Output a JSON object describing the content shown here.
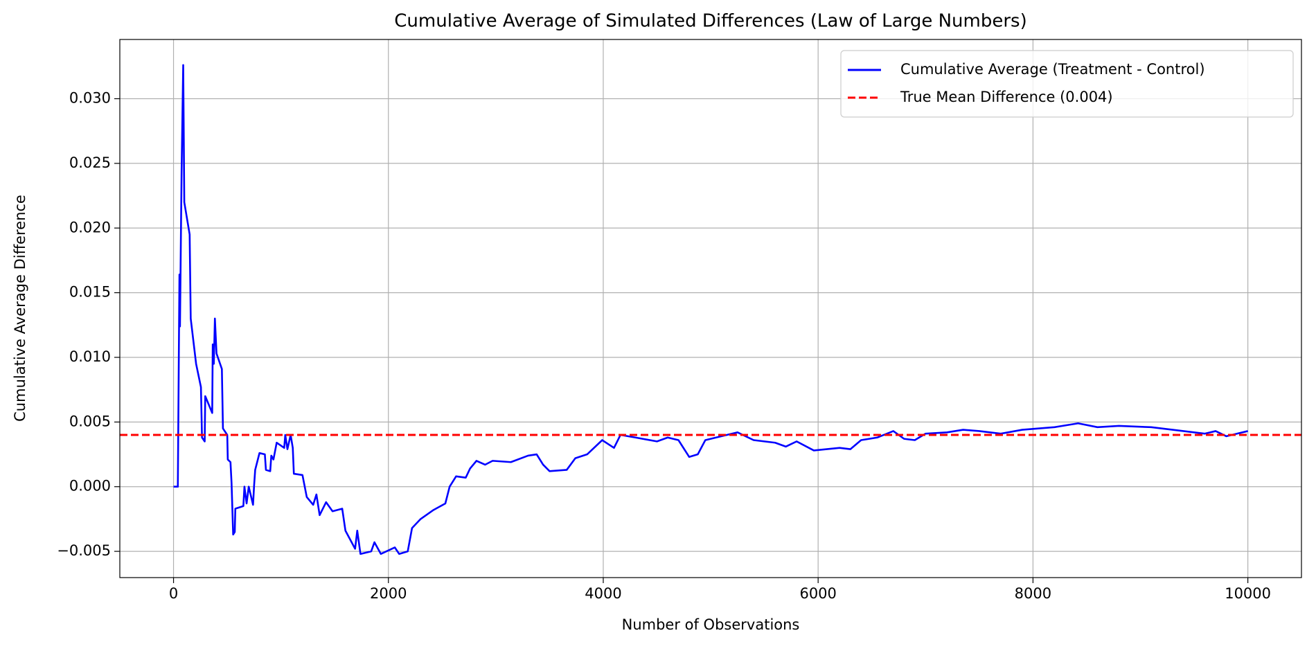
{
  "chart_data": {
    "type": "line",
    "title": "Cumulative Average of Simulated Differences (Law of Large Numbers)",
    "x_label": "Number of Observations",
    "y_label": "Cumulative Average Difference",
    "x": [
      0,
      40,
      55,
      60,
      75,
      90,
      100,
      150,
      160,
      210,
      255,
      265,
      290,
      295,
      360,
      365,
      375,
      385,
      400,
      450,
      460,
      500,
      505,
      530,
      540,
      555,
      570,
      575,
      650,
      660,
      680,
      700,
      740,
      750,
      760,
      800,
      850,
      860,
      900,
      910,
      930,
      960,
      1030,
      1040,
      1060,
      1090,
      1110,
      1120,
      1200,
      1240,
      1300,
      1330,
      1360,
      1420,
      1480,
      1570,
      1600,
      1690,
      1710,
      1740,
      1840,
      1870,
      1930,
      2060,
      2100,
      2180,
      2220,
      2300,
      2420,
      2530,
      2570,
      2630,
      2720,
      2760,
      2820,
      2900,
      2970,
      3140,
      3300,
      3380,
      3440,
      3500,
      3660,
      3740,
      3850,
      3990,
      4100,
      4160,
      4300,
      4500,
      4600,
      4700,
      4800,
      4880,
      4950,
      5100,
      5250,
      5400,
      5600,
      5700,
      5800,
      5960,
      6200,
      6300,
      6400,
      6550,
      6700,
      6800,
      6900,
      7000,
      7200,
      7350,
      7500,
      7700,
      7900,
      8200,
      8420,
      8600,
      8800,
      9100,
      9400,
      9600,
      9700,
      9800,
      9900,
      10000
    ],
    "series": [
      {
        "name": "Cumulative Average (Treatment - Control)",
        "color": "#0000ff",
        "values": [
          0,
          0,
          0.0164,
          0.0124,
          0.0244,
          0.0326,
          0.022,
          0.0195,
          0.013,
          0.0095,
          0.0077,
          0.0038,
          0.0035,
          0.007,
          0.0057,
          0.011,
          0.0095,
          0.013,
          0.0103,
          0.0091,
          0.0045,
          0.004,
          0.0021,
          0.0019,
          0.0003,
          -0.0037,
          -0.0035,
          -0.0017,
          -0.0015,
          0,
          -0.0013,
          0,
          -0.0014,
          0.0001,
          0.0013,
          0.0026,
          0.0025,
          0.0013,
          0.0012,
          0.0024,
          0.0021,
          0.0034,
          0.003,
          0.004,
          0.0029,
          0.004,
          0.003,
          0.001,
          0.0009,
          -0.0008,
          -0.0014,
          -0.0006,
          -0.0022,
          -0.0012,
          -0.0019,
          -0.0017,
          -0.0034,
          -0.0048,
          -0.0034,
          -0.0052,
          -0.005,
          -0.0043,
          -0.0052,
          -0.0047,
          -0.0052,
          -0.005,
          -0.0032,
          -0.0025,
          -0.0018,
          -0.0013,
          0,
          0.0008,
          0.0007,
          0.0014,
          0.002,
          0.0017,
          0.002,
          0.0019,
          0.0024,
          0.0025,
          0.0017,
          0.0012,
          0.0013,
          0.0022,
          0.0025,
          0.0036,
          0.003,
          0.004,
          0.0038,
          0.0035,
          0.0038,
          0.0036,
          0.0023,
          0.0025,
          0.0036,
          0.0039,
          0.0042,
          0.0036,
          0.0034,
          0.0031,
          0.0035,
          0.0028,
          0.003,
          0.0029,
          0.0036,
          0.0038,
          0.0043,
          0.0037,
          0.0036,
          0.0041,
          0.0042,
          0.0044,
          0.0043,
          0.0041,
          0.0044,
          0.0046,
          0.0049,
          0.0046,
          0.0047,
          0.0046,
          0.0043,
          0.0041,
          0.0043,
          0.0039,
          0.0041,
          0.0043
        ]
      }
    ],
    "reference_lines": [
      {
        "name": "True Mean Difference (0.004)",
        "color": "#ff0000",
        "value": 0.004,
        "style": "dashed"
      }
    ],
    "xlim": [
      -499.95,
      10498.95
    ],
    "ylim": [
      -0.00703,
      0.03458
    ],
    "xticks": [
      0,
      2000,
      4000,
      6000,
      8000,
      10000
    ],
    "yticks": [
      {
        "value": -0.005,
        "label": "−0.005"
      },
      {
        "value": 0,
        "label": "0.000"
      },
      {
        "value": 0.005,
        "label": "0.005"
      },
      {
        "value": 0.01,
        "label": "0.010"
      },
      {
        "value": 0.015,
        "label": "0.015"
      },
      {
        "value": 0.02,
        "label": "0.020"
      },
      {
        "value": 0.025,
        "label": "0.025"
      },
      {
        "value": 0.03,
        "label": "0.030"
      }
    ],
    "grid": true,
    "legend": "upper right"
  }
}
